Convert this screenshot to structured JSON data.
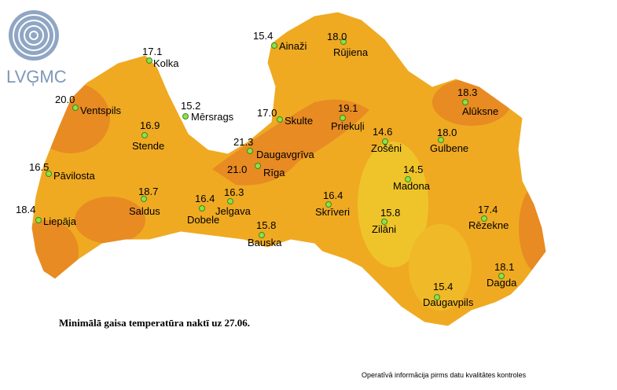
{
  "logo": "LVĢMC",
  "title": "Minimālā gaisa temperatūra naktī uz 27.06.",
  "footer": "Operatīvā informācija pirms datu kvalitātes kontroles",
  "stations": [
    {
      "name": "Kolka",
      "value": "17.1"
    },
    {
      "name": "Ainaži",
      "value": "15.4"
    },
    {
      "name": "Rūjiena",
      "value": "18.0"
    },
    {
      "name": "Ventspils",
      "value": "20.0"
    },
    {
      "name": "Mērsrags",
      "value": "15.2"
    },
    {
      "name": "Skulte",
      "value": "17.0"
    },
    {
      "name": "Priekuļi",
      "value": "19.1"
    },
    {
      "name": "Alūksne",
      "value": "18.3"
    },
    {
      "name": "Stende",
      "value": "16.9"
    },
    {
      "name": "Zošēni",
      "value": "14.6"
    },
    {
      "name": "Gulbene",
      "value": "18.0"
    },
    {
      "name": "Daugavgrīva",
      "value": "21.3"
    },
    {
      "name": "Rīga",
      "value": "21.0"
    },
    {
      "name": "Pāvilosta",
      "value": "16.5"
    },
    {
      "name": "Madona",
      "value": "14.5"
    },
    {
      "name": "Saldus",
      "value": "18.7"
    },
    {
      "name": "Dobele",
      "value": "16.4"
    },
    {
      "name": "Jelgava",
      "value": "16.3"
    },
    {
      "name": "Skrīveri",
      "value": "16.4"
    },
    {
      "name": "Rēzekne",
      "value": "17.4"
    },
    {
      "name": "Zilāni",
      "value": "15.8"
    },
    {
      "name": "Liepāja",
      "value": "18.4"
    },
    {
      "name": "Bauska",
      "value": "15.8"
    },
    {
      "name": "Dagda",
      "value": "18.1"
    },
    {
      "name": "Daugavpils",
      "value": "15.4"
    }
  ]
}
